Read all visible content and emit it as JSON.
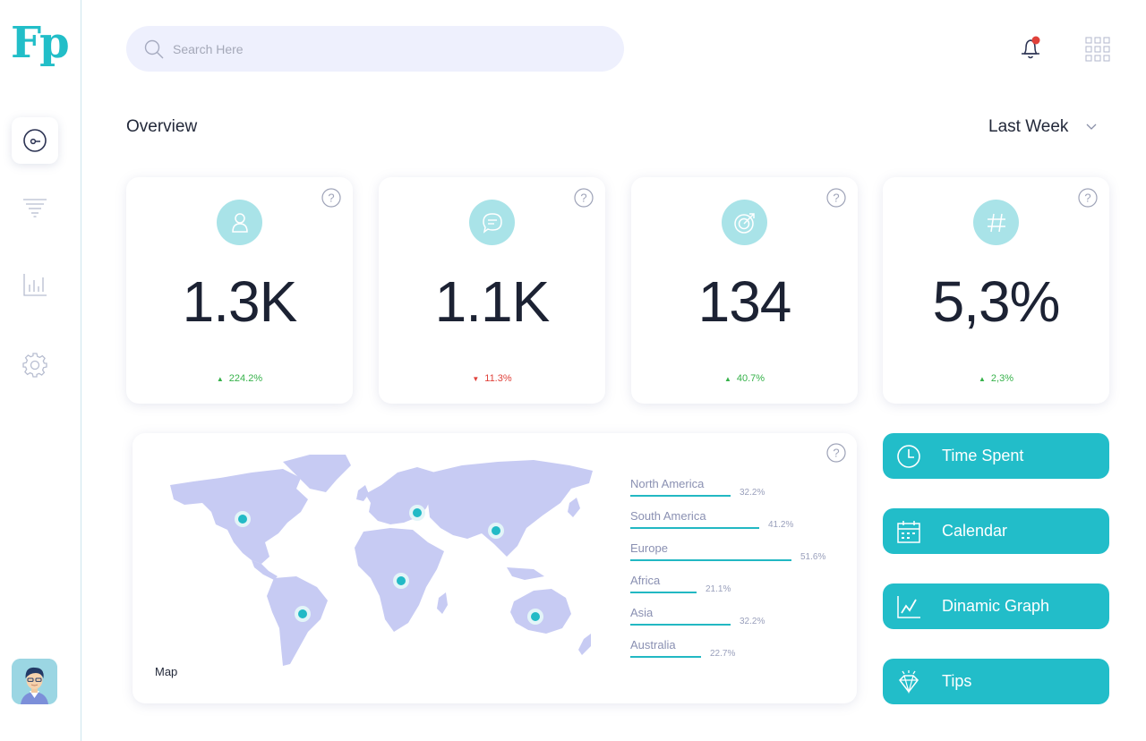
{
  "app": {
    "logo_text": "Fp"
  },
  "sidebar": {
    "items": [
      {
        "name": "dashboard",
        "icon": "gauge-icon",
        "active": true
      },
      {
        "name": "filter",
        "icon": "filter-icon",
        "active": false
      },
      {
        "name": "analytics",
        "icon": "bar-chart-icon",
        "active": false
      },
      {
        "name": "settings",
        "icon": "gear-icon",
        "active": false
      }
    ],
    "avatar_icon": "user-avatar-icon"
  },
  "header": {
    "search_placeholder": "Search Here",
    "notification_icon": "bell-icon",
    "apps_icon": "grid-icon"
  },
  "overview": {
    "title": "Overview",
    "period": "Last Week"
  },
  "stats": [
    {
      "icon": "user-icon",
      "value": "1.3K",
      "change": "224.2%",
      "trend": "up"
    },
    {
      "icon": "chat-icon",
      "value": "1.1K",
      "change": "11.3%",
      "trend": "down"
    },
    {
      "icon": "target-icon",
      "value": "134",
      "change": "40.7%",
      "trend": "up"
    },
    {
      "icon": "hash-icon",
      "value": "5,3%",
      "change": "2,3%",
      "trend": "up"
    }
  ],
  "map": {
    "label": "Map",
    "regions": [
      {
        "name": "North America",
        "percent": "32.2%",
        "value": 32.2
      },
      {
        "name": "South America",
        "percent": "41.2%",
        "value": 41.2
      },
      {
        "name": "Europe",
        "percent": "51.6%",
        "value": 51.6
      },
      {
        "name": "Africa",
        "percent": "21.1%",
        "value": 21.1
      },
      {
        "name": "Asia",
        "percent": "32.2%",
        "value": 32.2
      },
      {
        "name": "Australia",
        "percent": "22.7%",
        "value": 22.7
      }
    ]
  },
  "actions": [
    {
      "icon": "clock-icon",
      "label": "Time Spent"
    },
    {
      "icon": "calendar-icon",
      "label": "Calendar"
    },
    {
      "icon": "line-graph-icon",
      "label": "Dinamic Graph"
    },
    {
      "icon": "diamond-icon",
      "label": "Tips"
    }
  ],
  "colors": {
    "accent": "#22bdc9",
    "up": "#36b24a",
    "down": "#e0413a",
    "map_land": "#c7cbf3"
  }
}
